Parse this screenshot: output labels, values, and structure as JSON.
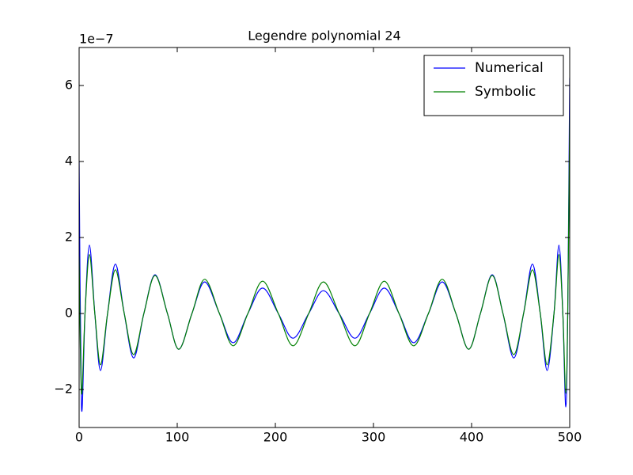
{
  "chart_data": {
    "type": "line",
    "title": "Legendre polynomial 24",
    "y_offset_label": "1e−7",
    "x": [
      0,
      2.4,
      6,
      10.5,
      16,
      21.8,
      29,
      37,
      46,
      55.6,
      66,
      77.4,
      90,
      101.6,
      115,
      128,
      143,
      157,
      172,
      187,
      203,
      218,
      234,
      249,
      265,
      281,
      296,
      311,
      326,
      341,
      356,
      370,
      384,
      397,
      409,
      421,
      432,
      443,
      453,
      462,
      470,
      477,
      484,
      489,
      493,
      496,
      498,
      500
    ],
    "series": [
      {
        "name": "Numerical",
        "color": "#0000ff",
        "values": [
          4.0,
          -2.46,
          0,
          1.8,
          0,
          -1.5,
          0,
          1.3,
          0,
          -1.17,
          0,
          1.02,
          0,
          -0.94,
          0,
          0.83,
          0,
          -0.77,
          0,
          0.67,
          0,
          -0.65,
          0,
          0.6,
          0,
          -0.65,
          0,
          0.67,
          0,
          -0.77,
          0,
          0.83,
          0,
          -0.94,
          0,
          1.02,
          0,
          -1.17,
          0,
          1.3,
          0,
          -1.5,
          0,
          1.8,
          0,
          -2.46,
          0,
          6.2
        ]
      },
      {
        "name": "Symbolic",
        "color": "#008000",
        "values": [
          1.5,
          -2.1,
          0,
          1.55,
          0,
          -1.35,
          0,
          1.15,
          0,
          -1.08,
          0,
          1.0,
          0,
          -0.94,
          0,
          0.9,
          0,
          -0.85,
          0,
          0.85,
          0,
          -0.85,
          0,
          0.83,
          0,
          -0.85,
          0,
          0.85,
          0,
          -0.85,
          0,
          0.9,
          0,
          -0.94,
          0,
          1.0,
          0,
          -1.08,
          0,
          1.15,
          0,
          -1.35,
          0,
          1.55,
          0,
          -2.1,
          0,
          5.2
        ]
      }
    ],
    "xlim": [
      0,
      500
    ],
    "xticks": [
      0,
      100,
      200,
      300,
      400,
      500
    ],
    "ylim": [
      -3,
      7
    ],
    "yticks": [
      {
        "value": -2,
        "label": "−2"
      },
      0,
      2,
      4,
      6
    ],
    "legend": "upper right"
  }
}
